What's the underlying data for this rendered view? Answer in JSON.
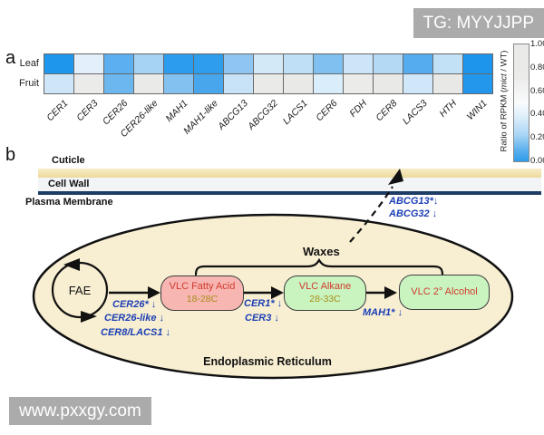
{
  "watermarks": {
    "top_right": "TG: MYYJJPP",
    "bottom_left": "www.pxxgy.com"
  },
  "panel_a": {
    "label": "a",
    "row_labels": [
      "Leaf",
      "Fruit"
    ],
    "colorbar": {
      "ticks": [
        "1.00",
        "0.80",
        "0.60",
        "0.40",
        "0.20",
        "0.00"
      ],
      "label_prefix": "Ratio of RPKM (",
      "label_mutant": "mict",
      "label_suffix": " / WT)"
    }
  },
  "chart_data": {
    "type": "heatmap",
    "categories": [
      "CER1",
      "CER3",
      "CER26",
      "CER26-like",
      "MAH1",
      "MAH1-like",
      "ABCG13",
      "ABCG32",
      "LACS1",
      "CER6",
      "FDH",
      "CER8",
      "LACS3",
      "HTH",
      "WIN1"
    ],
    "rows": [
      "Leaf",
      "Fruit"
    ],
    "series": [
      {
        "name": "Leaf",
        "values": [
          0.02,
          0.5,
          0.18,
          0.33,
          0.05,
          0.05,
          0.28,
          0.45,
          0.38,
          0.25,
          0.42,
          0.36,
          0.15,
          0.4,
          0.02
        ],
        "cell_colors": [
          "#1e96ec",
          "#e3effa",
          "#5caff0",
          "#a6d3f4",
          "#2b9cee",
          "#2d9dec",
          "#8ec6f1",
          "#d4e9f8",
          "#bedff6",
          "#7fc0f0",
          "#cce5f8",
          "#b3d9f4",
          "#55acee",
          "#c2e0f6",
          "#1e95ec"
        ]
      },
      {
        "name": "Fruit",
        "values": [
          0.43,
          0.95,
          0.2,
          0.95,
          0.26,
          0.12,
          0.41,
          0.95,
          0.95,
          0.46,
          0.95,
          0.95,
          0.43,
          0.95,
          0.05
        ],
        "cell_colors": [
          "#cfe6f8",
          "#ebebe9",
          "#6cb7ee",
          "#eaeae8",
          "#83c2f0",
          "#48a7ec",
          "#c8e3f7",
          "#eaeae8",
          "#e9e9e7",
          "#d9edfa",
          "#ebebe9",
          "#e9e9e7",
          "#cfe7f8",
          "#e8e8e6",
          "#2297ec"
        ]
      }
    ],
    "scale": {
      "min": 0.0,
      "max": 1.0,
      "label": "Ratio of RPKM (mict / WT)",
      "low_color": "#2e9cea",
      "high_color": "#e9e9e7"
    },
    "legend_position": "right",
    "grid": true
  },
  "panel_b": {
    "label": "b",
    "layers": {
      "cuticle": "Cuticle",
      "cell_wall": "Cell Wall",
      "plasma_membrane": "Plasma Membrane"
    },
    "er_label": "Endoplasmic Reticulum",
    "fae_label": "FAE",
    "waxes_label": "Waxes",
    "boxes": [
      {
        "line1": "VLC Fatty Acid",
        "line2": "18-28C"
      },
      {
        "line1": "VLC Alkane",
        "line2": "28-33C"
      },
      {
        "line1": "VLC 2° Alcohol",
        "line2": ""
      }
    ],
    "enzymes": {
      "fae_to_fatty_acid": [
        "CER26* ↓",
        "CER26-like ↓",
        "CER8/LACS1 ↓"
      ],
      "fatty_acid_to_alkane": [
        "CER1* ↓",
        "CER3 ↓"
      ],
      "alkane_to_alcohol": [
        "MAH1* ↓"
      ],
      "export": [
        "ABCG13*↓",
        "ABCG32 ↓"
      ]
    }
  },
  "colors": {
    "heatmap_low": "#2e9cea",
    "heatmap_high": "#e9e9e7",
    "enzyme_text": "#1c3fb4",
    "metabolite_text": "#d23a2e",
    "chain_length_text": "#a88d17",
    "fatty_acid_box": "#f7b6b2",
    "alkane_box": "#c9f4c0",
    "cuticle_bar": "#eeda9e",
    "plasma_membrane": "#1e3d66",
    "er_fill": "#f8efd2",
    "watermark_bg": "#ababab"
  }
}
